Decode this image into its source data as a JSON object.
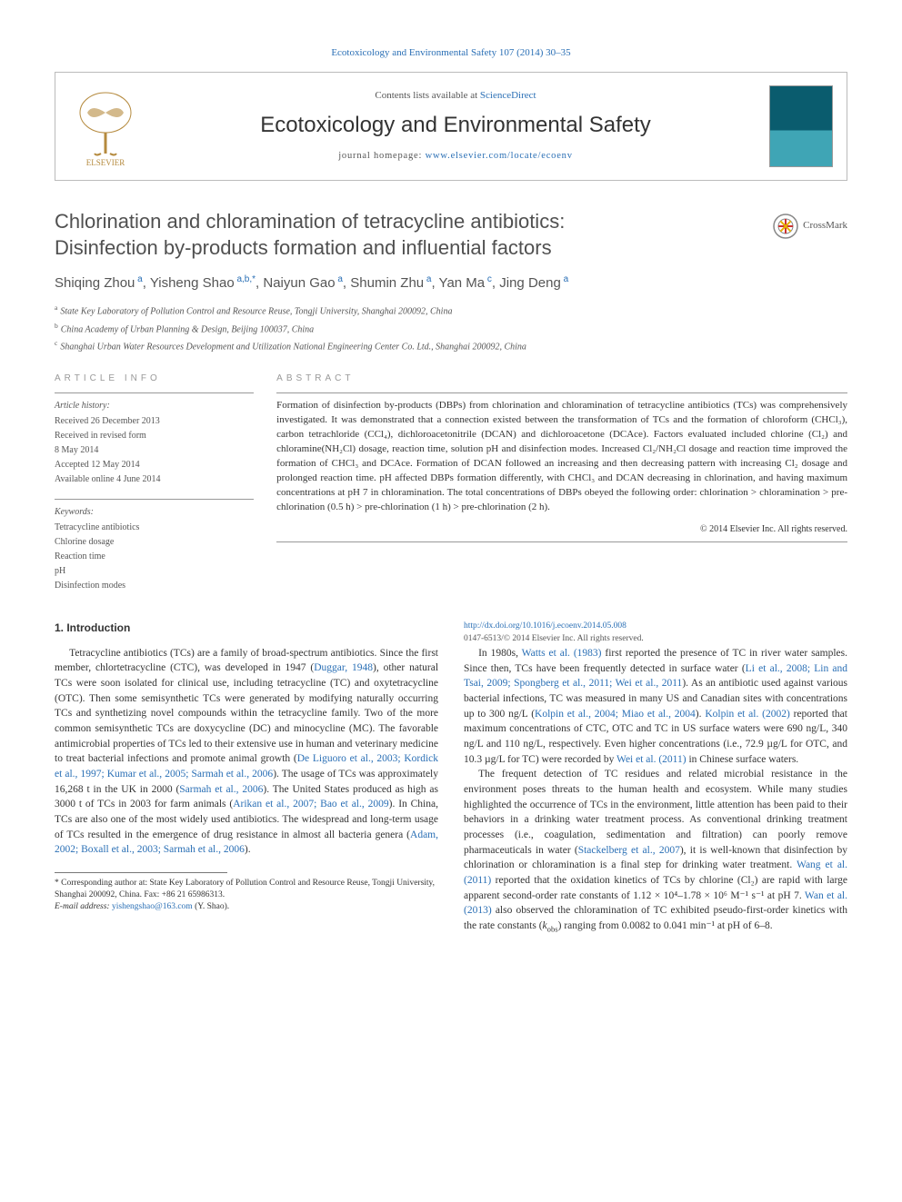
{
  "top_link": "Ecotoxicology and Environmental Safety 107 (2014) 30–35",
  "header": {
    "contents_line_prefix": "Contents lists available at ",
    "contents_line_link": "ScienceDirect",
    "journal_title": "Ecotoxicology and Environmental Safety",
    "homepage_prefix": "journal homepage: ",
    "homepage_link": "www.elsevier.com/locate/ecoenv"
  },
  "article": {
    "title_line1": "Chlorination and chloramination of tetracycline antibiotics:",
    "title_line2": "Disinfection by-products formation and influential factors",
    "crossmark_label": "CrossMark",
    "authors_html": "Shiqing Zhou<sup> a</sup>, Yisheng Shao<sup> a,b,*</sup>, Naiyun Gao<sup> a</sup>, Shumin Zhu<sup> a</sup>, Yan Ma<sup> c</sup>, Jing Deng<sup> a</sup>",
    "affiliations": [
      {
        "sup": "a",
        "text": "State Key Laboratory of Pollution Control and Resource Reuse, Tongji University, Shanghai 200092, China"
      },
      {
        "sup": "b",
        "text": "China Academy of Urban Planning & Design, Beijing 100037, China"
      },
      {
        "sup": "c",
        "text": "Shanghai Urban Water Resources Development and Utilization National Engineering Center Co. Ltd., Shanghai 200092, China"
      }
    ]
  },
  "info": {
    "heading": "ARTICLE INFO",
    "history_label": "Article history:",
    "history": [
      "Received 26 December 2013",
      "Received in revised form",
      "8 May 2014",
      "Accepted 12 May 2014",
      "Available online 4 June 2014"
    ],
    "keywords_label": "Keywords:",
    "keywords": [
      "Tetracycline antibiotics",
      "Chlorine dosage",
      "Reaction time",
      "pH",
      "Disinfection modes"
    ]
  },
  "abstract": {
    "heading": "ABSTRACT",
    "text": "Formation of disinfection by-products (DBPs) from chlorination and chloramination of tetracycline antibiotics (TCs) was comprehensively investigated. It was demonstrated that a connection existed between the transformation of TCs and the formation of chloroform (CHCl₃), carbon tetrachloride (CCl₄), dichloroacetonitrile (DCAN) and dichloroacetone (DCAce). Factors evaluated included chlorine (Cl₂) and chloramine(NH₂Cl) dosage, reaction time, solution pH and disinfection modes. Increased Cl₂/NH₂Cl dosage and reaction time improved the formation of CHCl₃ and DCAce. Formation of DCAN followed an increasing and then decreasing pattern with increasing Cl₂ dosage and prolonged reaction time. pH affected DBPs formation differently, with CHCl₃ and DCAN decreasing in chlorination, and having maximum concentrations at pH 7 in chloramination. The total concentrations of DBPs obeyed the following order: chlorination > chloramination > pre-chlorination (0.5 h) > pre-chlorination (1 h) > pre-chlorination (2 h).",
    "copyright": "© 2014 Elsevier Inc. All rights reserved."
  },
  "body": {
    "section_heading": "1.  Introduction",
    "p1a": "Tetracycline antibiotics (TCs) are a family of broad-spectrum antibiotics. Since the first member, chlortetracycline (CTC), was developed in 1947 (",
    "p1_cite1": "Duggar, 1948",
    "p1b": "), other natural TCs were soon isolated for clinical use, including tetracycline (TC) and oxytetracycline (OTC). Then some semisynthetic TCs were generated by modifying naturally occurring TCs and synthetizing novel compounds within the tetracycline family. Two of the more common semisynthetic TCs are doxycycline (DC) and minocycline (MC). The favorable antimicrobial properties of TCs led to their extensive use in human and veterinary medicine to treat bacterial infections and promote animal growth (",
    "p1_cite2": "De Liguoro et al., 2003; Kordick et al., 1997; Kumar et al., 2005; Sarmah et al., 2006",
    "p1c": "). The usage of TCs was approximately 16,268 t in the UK in 2000 (",
    "p1_cite3": "Sarmah et al., 2006",
    "p1d": "). The United States produced as high as 3000 t of TCs in 2003 for farm animals (",
    "p1_cite4": "Arikan et al., 2007; Bao et al., 2009",
    "p1e": "). In China, TCs are also one of the most widely used antibiotics. The widespread and long-term usage of TCs resulted in the emergence of drug resistance in almost all bacteria genera (",
    "p1_cite5": "Adam, 2002; Boxall et al., 2003; Sarmah et al., 2006",
    "p1f": ").",
    "p2a": "In 1980s, ",
    "p2_cite1": "Watts et al. (1983)",
    "p2b": " first reported the presence of TC in river water samples. Since then, TCs have been frequently detected in surface water (",
    "p2_cite2": "Li et al., 2008; Lin and Tsai, 2009; Spongberg et al., 2011; Wei et al., 2011",
    "p2c": "). As an antibiotic used against various bacterial infections, TC was measured in many US and Canadian sites with concentrations up to 300 ng/L (",
    "p2_cite3": "Kolpin et al., 2004; Miao et al., 2004",
    "p2d": "). ",
    "p2_cite4": "Kolpin et al. (2002)",
    "p2e": " reported that maximum concentrations of CTC, OTC and TC in US surface waters were 690 ng/L, 340 ng/L and 110 ng/L, respectively. Even higher concentrations (i.e., 72.9 µg/L for OTC, and 10.3 µg/L for TC) were recorded by ",
    "p2_cite5": "Wei et al. (2011)",
    "p2f": " in Chinese surface waters.",
    "p3a": "The frequent detection of TC residues and related microbial resistance in the environment poses threats to the human health and ecosystem. While many studies highlighted the occurrence of TCs in the environment, little attention has been paid to their behaviors in a drinking water treatment process. As conventional drinking treatment processes (i.e., coagulation, sedimentation and filtration) can poorly remove pharmaceuticals in water (",
    "p3_cite1": "Stackelberg et al., 2007",
    "p3b": "), it is well-known that disinfection by chlorination or chloramination is a final step for drinking water treatment. ",
    "p3_cite2": "Wang et al. (2011)",
    "p3c": " reported that the oxidation kinetics of TCs by chlorine (Cl₂) are rapid with large apparent second-order rate constants of 1.12 × 10⁴–1.78 × 10⁶ M⁻¹ s⁻¹ at pH 7. ",
    "p3_cite3": "Wan et al. (2013)",
    "p3d": " also observed the chloramination of TC exhibited pseudo-first-order kinetics with the rate constants (",
    "p3_kobs": "k",
    "p3_obs": "obs",
    "p3e": ") ranging from 0.0082 to 0.041 min⁻¹ at pH of 6–8."
  },
  "footnote": {
    "corr_prefix": "* Corresponding author at: State Key Laboratory of Pollution Control and Resource Reuse, Tongji University, Shanghai 200092, China. Fax: +86 21 65986313.",
    "email_label": "E-mail address: ",
    "email": "yishengshao@163.com",
    "email_suffix": " (Y. Shao)."
  },
  "bottom": {
    "doi": "http://dx.doi.org/10.1016/j.ecoenv.2014.05.008",
    "issn_line": "0147-6513/© 2014 Elsevier Inc. All rights reserved."
  },
  "colors": {
    "link": "#2a6fb5",
    "text": "#333333",
    "muted": "#555555",
    "border": "#999999"
  }
}
